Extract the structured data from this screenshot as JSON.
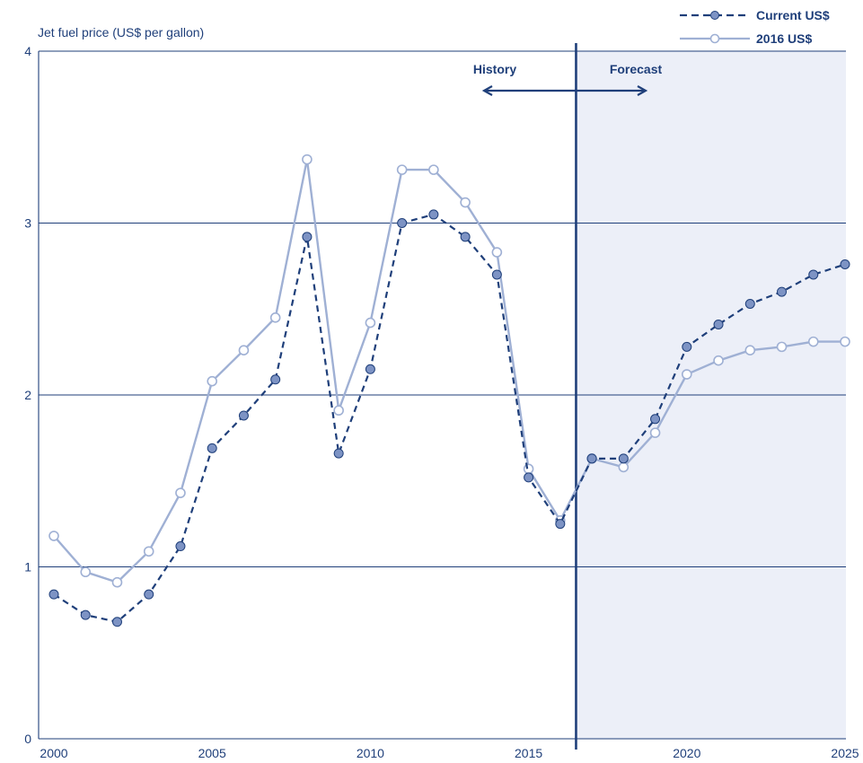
{
  "chart_data": {
    "type": "line",
    "ylabel": "Jet fuel price (US$ per gallon)",
    "xlim": [
      2000,
      2025
    ],
    "ylim": [
      0,
      4
    ],
    "x_ticks": [
      "2000",
      "2005",
      "2010",
      "2015",
      "2020",
      "2025"
    ],
    "y_ticks": [
      "0",
      "1",
      "2",
      "3",
      "4"
    ],
    "grid": "horizontal",
    "legend": "top-right",
    "forecast_start": 2016.5,
    "annotations": {
      "history": "History",
      "forecast": "Forecast"
    },
    "x": [
      2000,
      2001,
      2002,
      2003,
      2004,
      2005,
      2006,
      2007,
      2008,
      2009,
      2010,
      2011,
      2012,
      2013,
      2014,
      2015,
      2016,
      2017,
      2018,
      2019,
      2020,
      2021,
      2022,
      2023,
      2024,
      2025
    ],
    "series": [
      {
        "name": "Current US$",
        "style": "dashed-filled",
        "values": [
          0.84,
          0.72,
          0.68,
          0.84,
          1.12,
          1.69,
          1.88,
          2.09,
          2.92,
          1.66,
          2.15,
          3.0,
          3.05,
          2.92,
          2.7,
          1.52,
          1.25,
          1.63,
          1.63,
          1.86,
          2.28,
          2.41,
          2.53,
          2.6,
          2.7,
          2.76
        ]
      },
      {
        "name": "2016 US$",
        "style": "solid-open",
        "values": [
          1.18,
          0.97,
          0.91,
          1.09,
          1.43,
          2.08,
          2.26,
          2.45,
          3.37,
          1.91,
          2.42,
          3.31,
          3.31,
          3.12,
          2.83,
          1.57,
          1.27,
          1.63,
          1.58,
          1.78,
          2.12,
          2.2,
          2.26,
          2.28,
          2.31,
          2.31
        ]
      }
    ]
  },
  "colors": {
    "current_line": "#1f3f7a",
    "current_marker_fill": "#7d93c4",
    "constant_line": "#9fb0d4",
    "forecast_bg": "#eceff8",
    "grid": "#1f3f7a",
    "divider": "#1f3f7a",
    "text": "#1f3f7a"
  }
}
